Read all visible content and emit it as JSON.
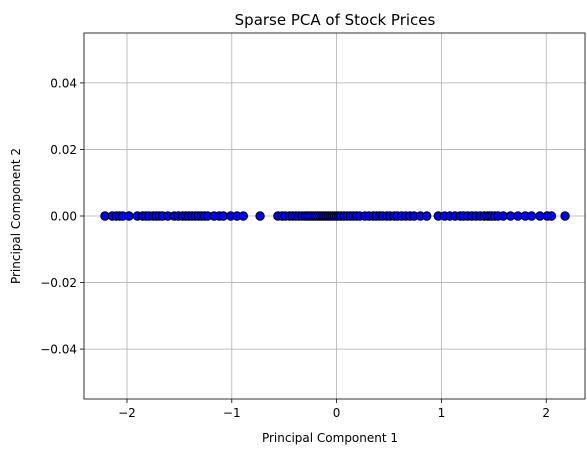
{
  "chart_data": {
    "type": "scatter",
    "title": "Sparse PCA of Stock Prices",
    "xlabel": "Principal Component 1",
    "ylabel": "Principal Component 2",
    "xlim": [
      -2.41,
      2.37
    ],
    "ylim": [
      -0.055,
      0.055
    ],
    "grid": true,
    "x_ticks": [
      -2,
      -1,
      0,
      1,
      2
    ],
    "x_tick_labels": [
      "−2",
      "−1",
      "0",
      "1",
      "2"
    ],
    "y_ticks": [
      -0.04,
      -0.02,
      0.0,
      0.02,
      0.04
    ],
    "y_tick_labels": [
      "−0.04",
      "−0.02",
      "0.00",
      "0.02",
      "0.04"
    ],
    "marker_face_color": "#0000ff",
    "marker_edge_color": "#000000",
    "points": {
      "x": [
        -2.21,
        -2.14,
        -2.1,
        -2.07,
        -2.04,
        -1.98,
        -1.9,
        -1.85,
        -1.82,
        -1.79,
        -1.75,
        -1.72,
        -1.69,
        -1.66,
        -1.61,
        -1.55,
        -1.51,
        -1.47,
        -1.44,
        -1.41,
        -1.38,
        -1.35,
        -1.32,
        -1.29,
        -1.26,
        -1.23,
        -1.17,
        -1.12,
        -1.08,
        -1.01,
        -0.95,
        -0.89,
        -0.73,
        -0.56,
        -0.52,
        -0.49,
        -0.45,
        -0.42,
        -0.39,
        -0.36,
        -0.33,
        -0.3,
        -0.28,
        -0.26,
        -0.24,
        -0.22,
        -0.2,
        -0.18,
        -0.16,
        -0.14,
        -0.12,
        -0.1,
        -0.08,
        -0.06,
        -0.04,
        -0.02,
        0.0,
        0.02,
        0.04,
        0.07,
        0.1,
        0.13,
        0.16,
        0.19,
        0.22,
        0.27,
        0.31,
        0.35,
        0.38,
        0.41,
        0.44,
        0.48,
        0.51,
        0.55,
        0.58,
        0.62,
        0.66,
        0.7,
        0.74,
        0.8,
        0.86,
        0.97,
        1.03,
        1.08,
        1.13,
        1.18,
        1.21,
        1.25,
        1.29,
        1.33,
        1.37,
        1.41,
        1.44,
        1.46,
        1.48,
        1.51,
        1.54,
        1.59,
        1.66,
        1.73,
        1.8,
        1.86,
        1.94,
        2.01,
        2.05,
        2.18
      ],
      "y": [
        0,
        0,
        0,
        0,
        0,
        0,
        0,
        0,
        0,
        0,
        0,
        0,
        0,
        0,
        0,
        0,
        0,
        0,
        0,
        0,
        0,
        0,
        0,
        0,
        0,
        0,
        0,
        0,
        0,
        0,
        0,
        0,
        0,
        0,
        0,
        0,
        0,
        0,
        0,
        0,
        0,
        0,
        0,
        0,
        0,
        0,
        0,
        0,
        0,
        0,
        0,
        0,
        0,
        0,
        0,
        0,
        0,
        0,
        0,
        0,
        0,
        0,
        0,
        0,
        0,
        0,
        0,
        0,
        0,
        0,
        0,
        0,
        0,
        0,
        0,
        0,
        0,
        0,
        0,
        0,
        0,
        0,
        0,
        0,
        0,
        0,
        0,
        0,
        0,
        0,
        0,
        0,
        0,
        0,
        0,
        0,
        0,
        0,
        0,
        0,
        0,
        0,
        0,
        0,
        0,
        0
      ]
    }
  }
}
